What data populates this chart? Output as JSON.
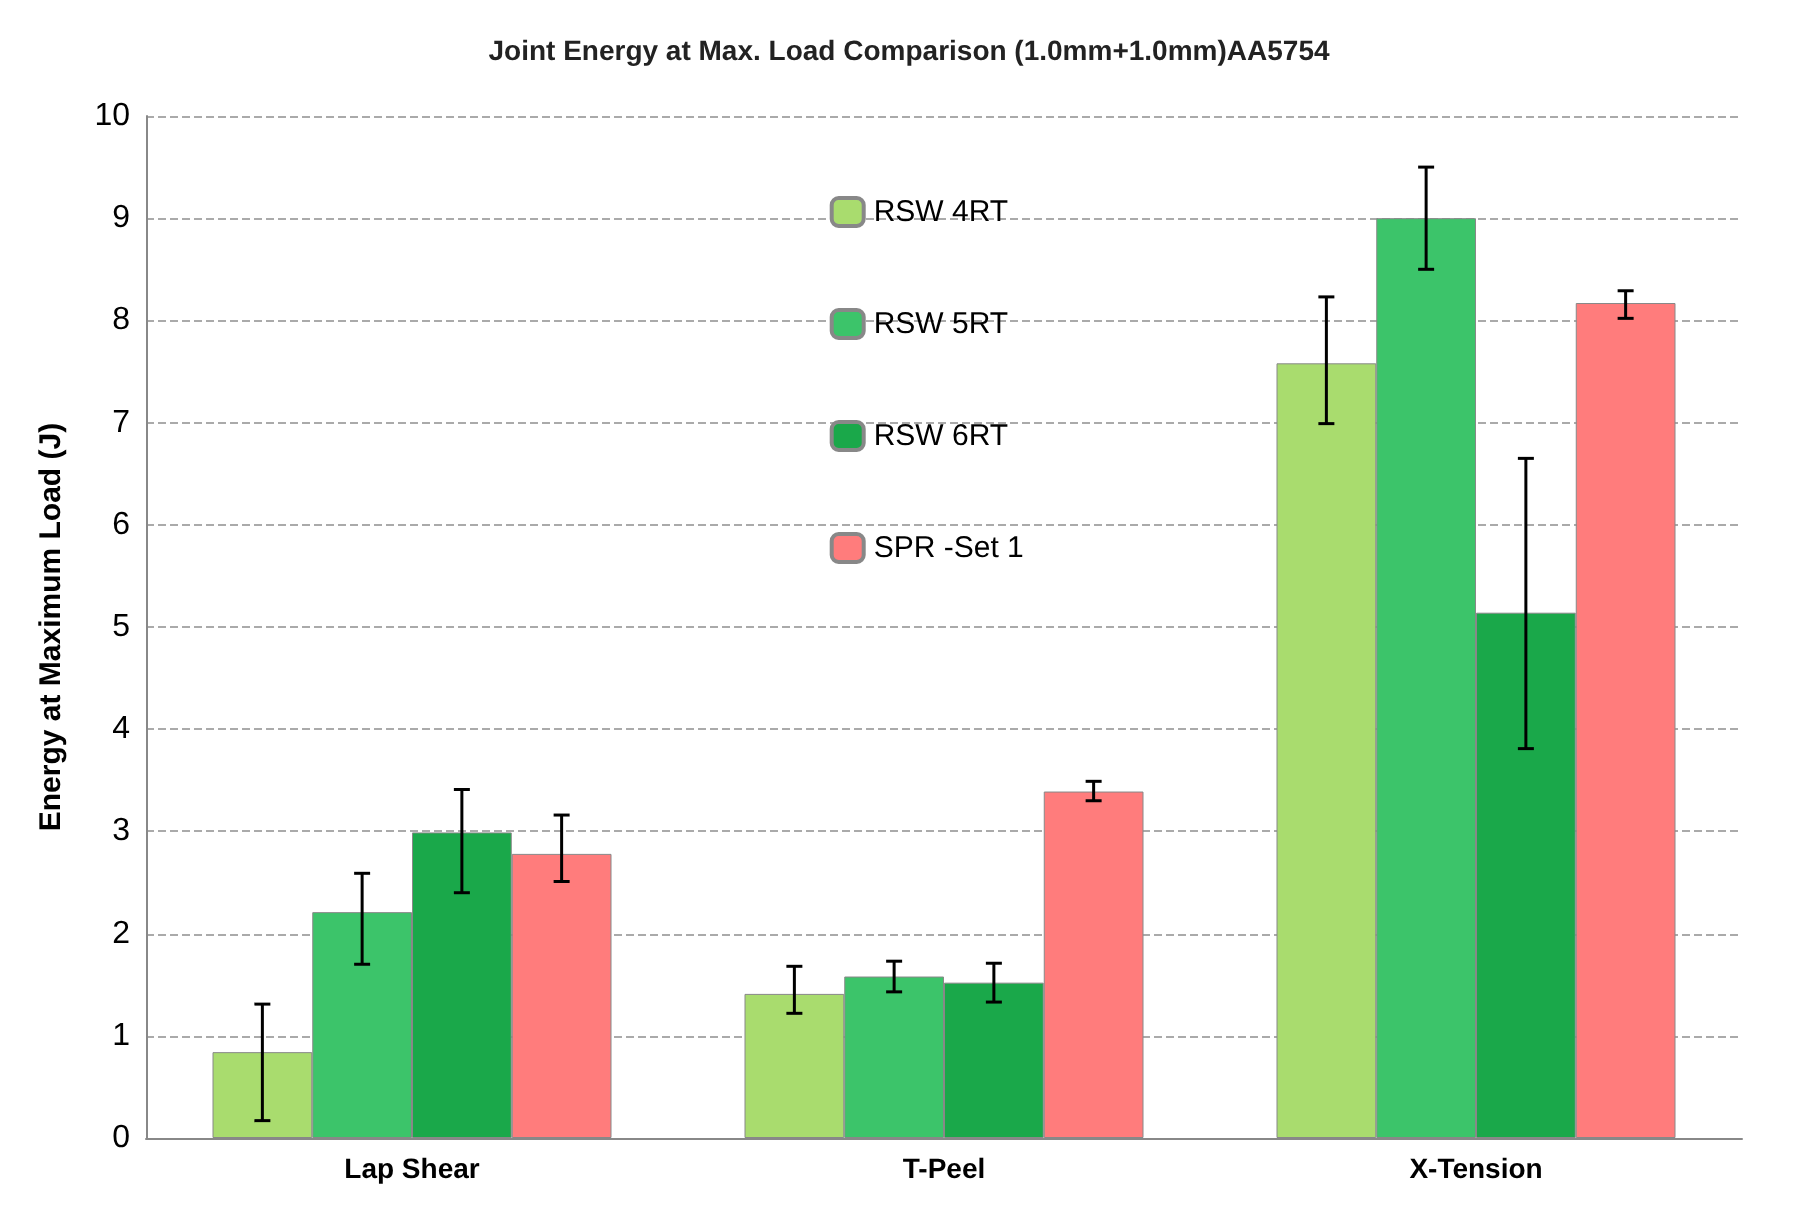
{
  "chart_data": {
    "type": "bar",
    "title": "Joint Energy at Max. Load Comparison (1.0mm+1.0mm)AA5754",
    "ylabel": "Energy at Maximum Load (J)",
    "categories": [
      "Lap Shear",
      "T-Peel",
      "X-Tension"
    ],
    "series": [
      {
        "name": "RSW 4RT",
        "color": "#a9dc6e",
        "values": [
          0.84,
          1.41,
          7.58
        ],
        "errors": [
          [
            0.17,
            1.31
          ],
          [
            1.22,
            1.68
          ],
          [
            6.99,
            8.23
          ]
        ]
      },
      {
        "name": "RSW 5RT",
        "color": "#3cc46a",
        "values": [
          2.21,
          1.58,
          9.0
        ],
        "errors": [
          [
            1.7,
            2.59
          ],
          [
            1.43,
            1.73
          ],
          [
            8.5,
            9.5
          ]
        ]
      },
      {
        "name": "RSW 6RT",
        "color": "#1aa84a",
        "values": [
          2.99,
          1.52,
          5.14
        ],
        "errors": [
          [
            2.4,
            3.41
          ],
          [
            1.33,
            1.71
          ],
          [
            3.81,
            6.65
          ]
        ]
      },
      {
        "name": "SPR -Set 1",
        "color": "#ff7c7c",
        "values": [
          2.78,
          3.39,
          8.17
        ],
        "errors": [
          [
            2.51,
            3.16
          ],
          [
            3.3,
            3.49
          ],
          [
            8.02,
            8.29
          ]
        ]
      }
    ],
    "ylim": [
      0,
      10
    ],
    "yticks": [
      0,
      1,
      2,
      3,
      4,
      5,
      6,
      7,
      8,
      9,
      10
    ],
    "grid": "y",
    "legend": "top"
  }
}
